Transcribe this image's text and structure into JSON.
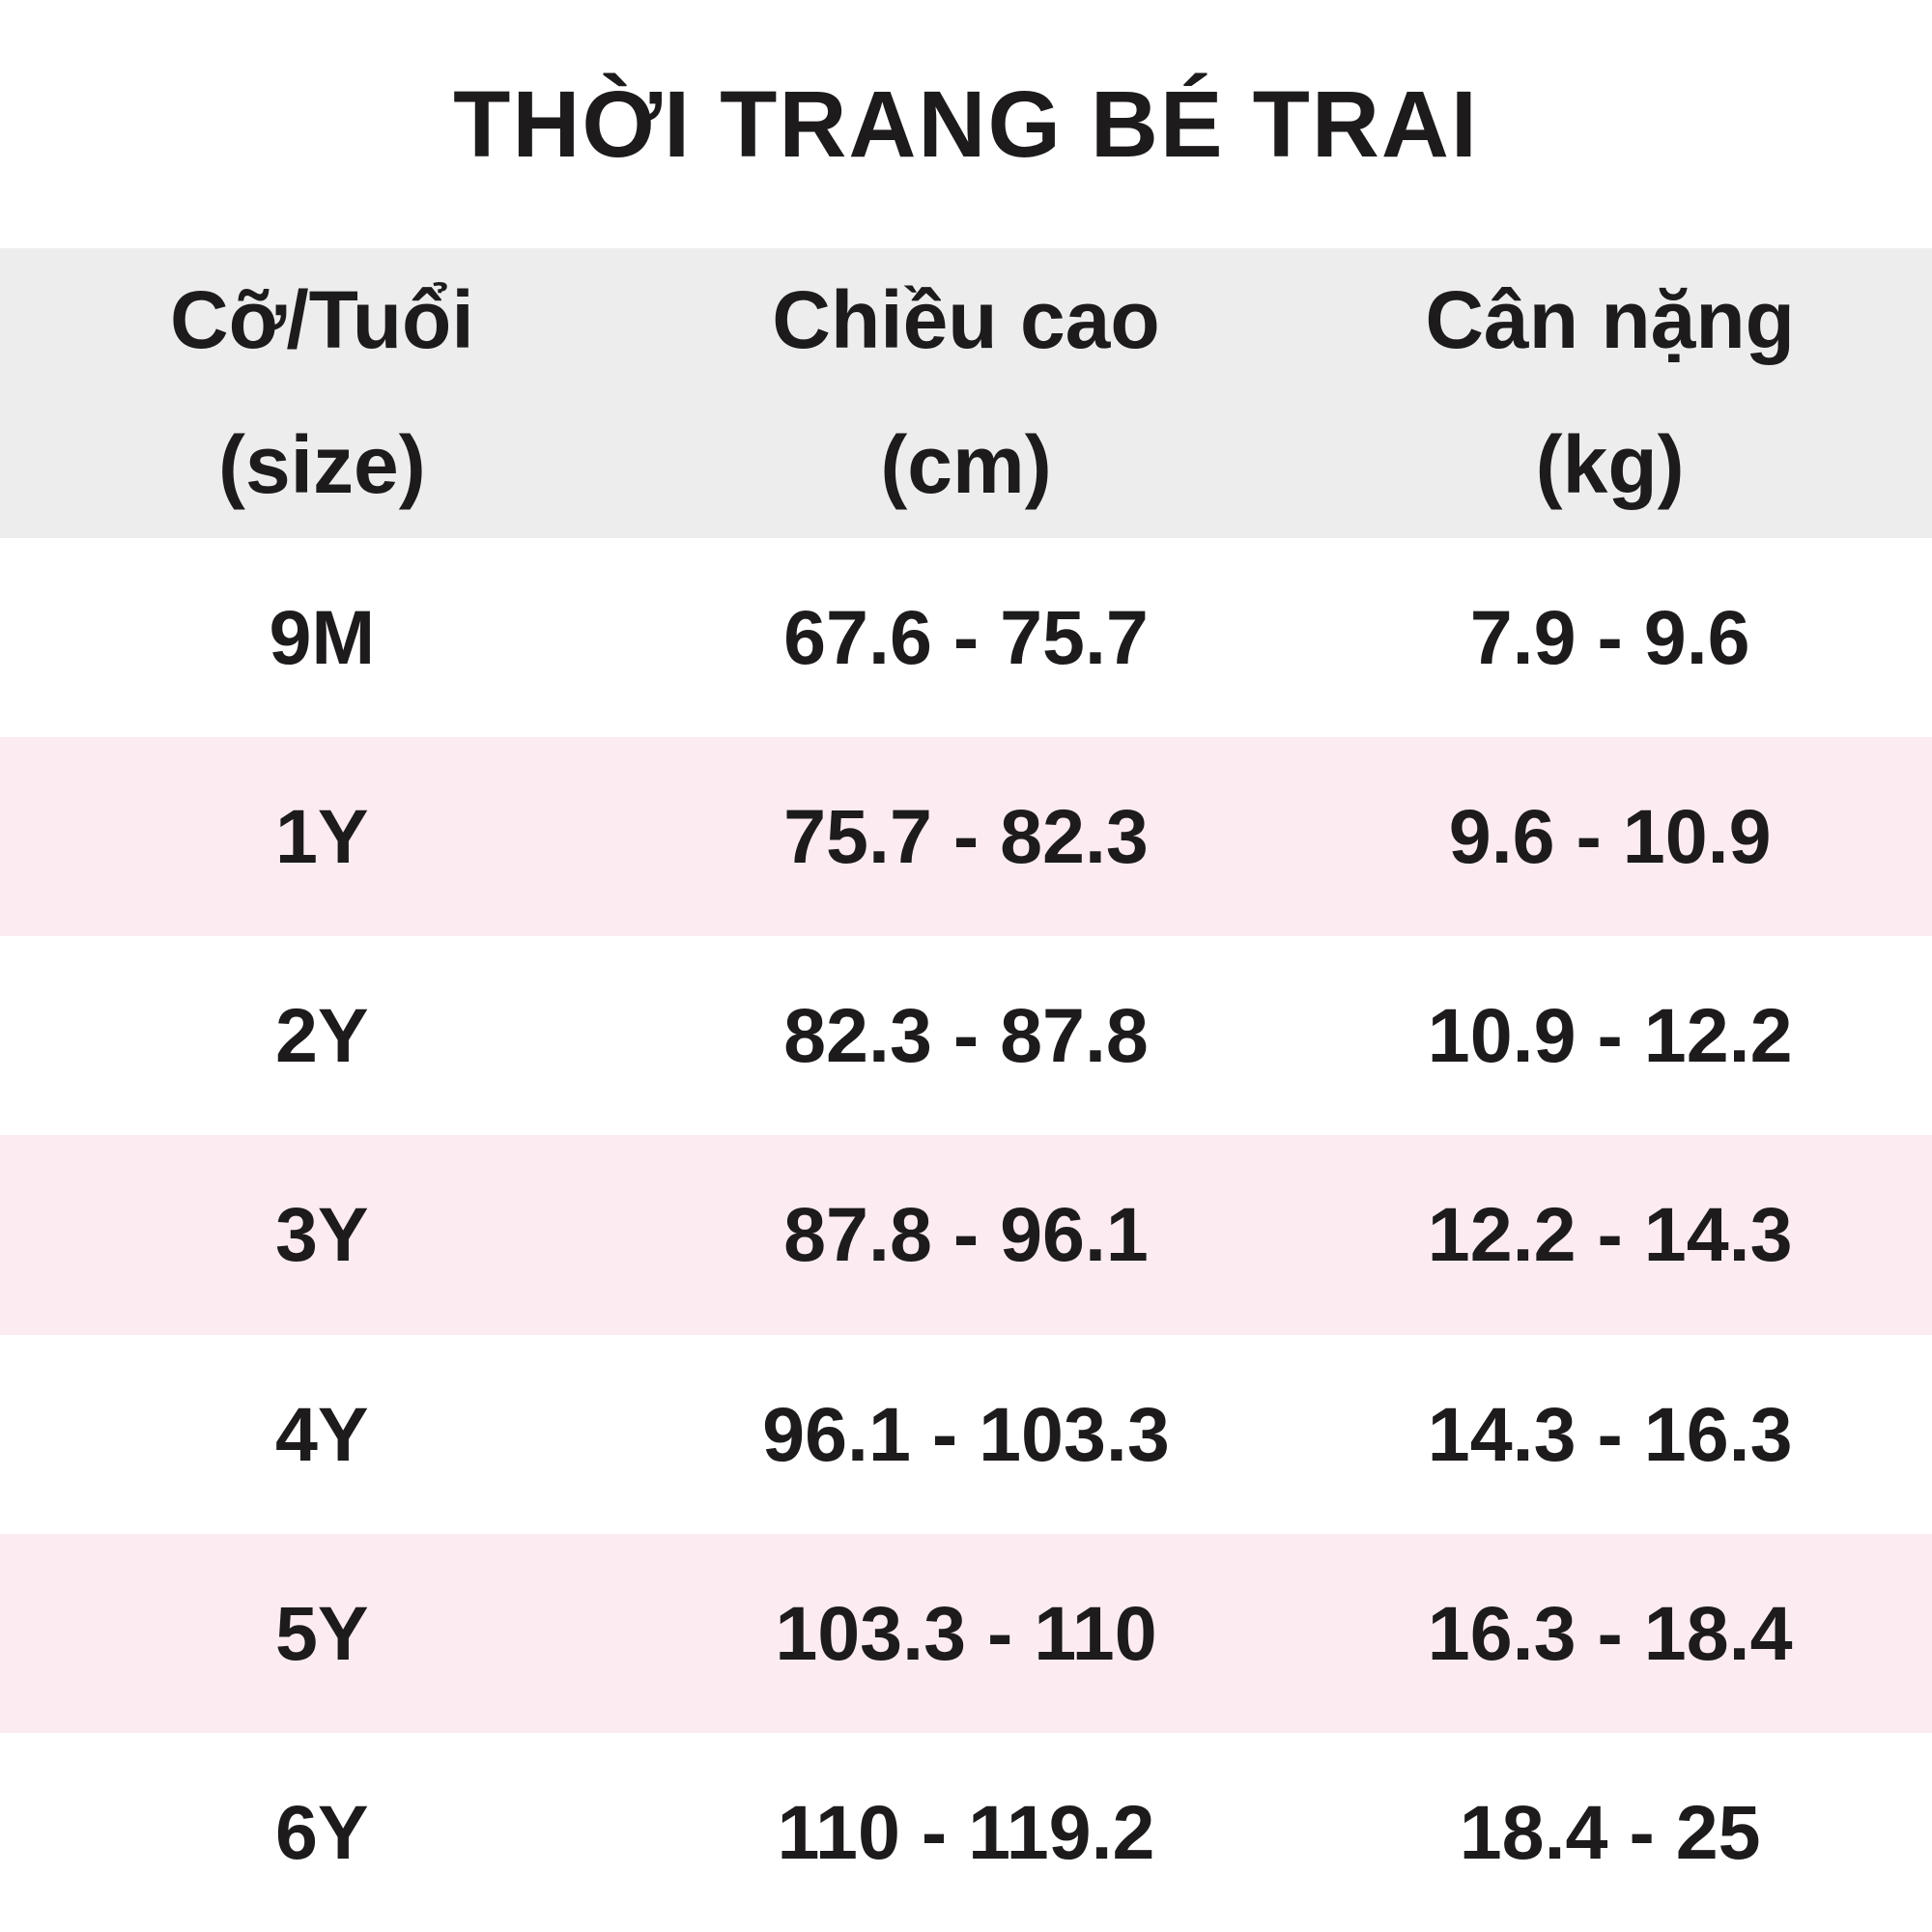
{
  "title": "THỜI TRANG BÉ TRAI",
  "colors": {
    "header_bg": "#ededee",
    "row_bg": "#ffffff",
    "row_alt_bg": "#fcebf1",
    "text": "#1d1b1c"
  },
  "table": {
    "columns": [
      {
        "line1": "Cỡ/Tuổi",
        "line2": "(size)"
      },
      {
        "line1": "Chiều cao",
        "line2": "(cm)"
      },
      {
        "line1": "Cân nặng",
        "line2": "(kg)"
      }
    ],
    "rows": [
      {
        "size": "9M",
        "height": "67.6 - 75.7",
        "weight": "7.9 - 9.6"
      },
      {
        "size": "1Y",
        "height": "75.7 - 82.3",
        "weight": "9.6 - 10.9"
      },
      {
        "size": "2Y",
        "height": "82.3 - 87.8",
        "weight": "10.9 - 12.2"
      },
      {
        "size": "3Y",
        "height": "87.8 - 96.1",
        "weight": "12.2 - 14.3"
      },
      {
        "size": "4Y",
        "height": "96.1 - 103.3",
        "weight": "14.3 - 16.3"
      },
      {
        "size": "5Y",
        "height": "103.3 - 110",
        "weight": "16.3 - 18.4"
      },
      {
        "size": "6Y",
        "height": "110 - 119.2",
        "weight": "18.4 - 25"
      }
    ]
  },
  "chart_data": {
    "type": "table",
    "title": "THỜI TRANG BÉ TRAI",
    "columns": [
      "Cỡ/Tuổi (size)",
      "Chiều cao (cm)",
      "Cân nặng (kg)"
    ],
    "rows": [
      [
        "9M",
        "67.6 - 75.7",
        "7.9 - 9.6"
      ],
      [
        "1Y",
        "75.7 - 82.3",
        "9.6 - 10.9"
      ],
      [
        "2Y",
        "82.3 - 87.8",
        "10.9 - 12.2"
      ],
      [
        "3Y",
        "87.8 - 96.1",
        "12.2 - 14.3"
      ],
      [
        "4Y",
        "96.1 - 103.3",
        "14.3 - 16.3"
      ],
      [
        "5Y",
        "103.3 - 110",
        "16.3 - 18.4"
      ],
      [
        "6Y",
        "110 - 119.2",
        "18.4 - 25"
      ]
    ],
    "layout": {
      "header_background": "#ededee",
      "alternating_row_background": [
        "#ffffff",
        "#fcebf1"
      ],
      "text_alignment": "center"
    }
  }
}
